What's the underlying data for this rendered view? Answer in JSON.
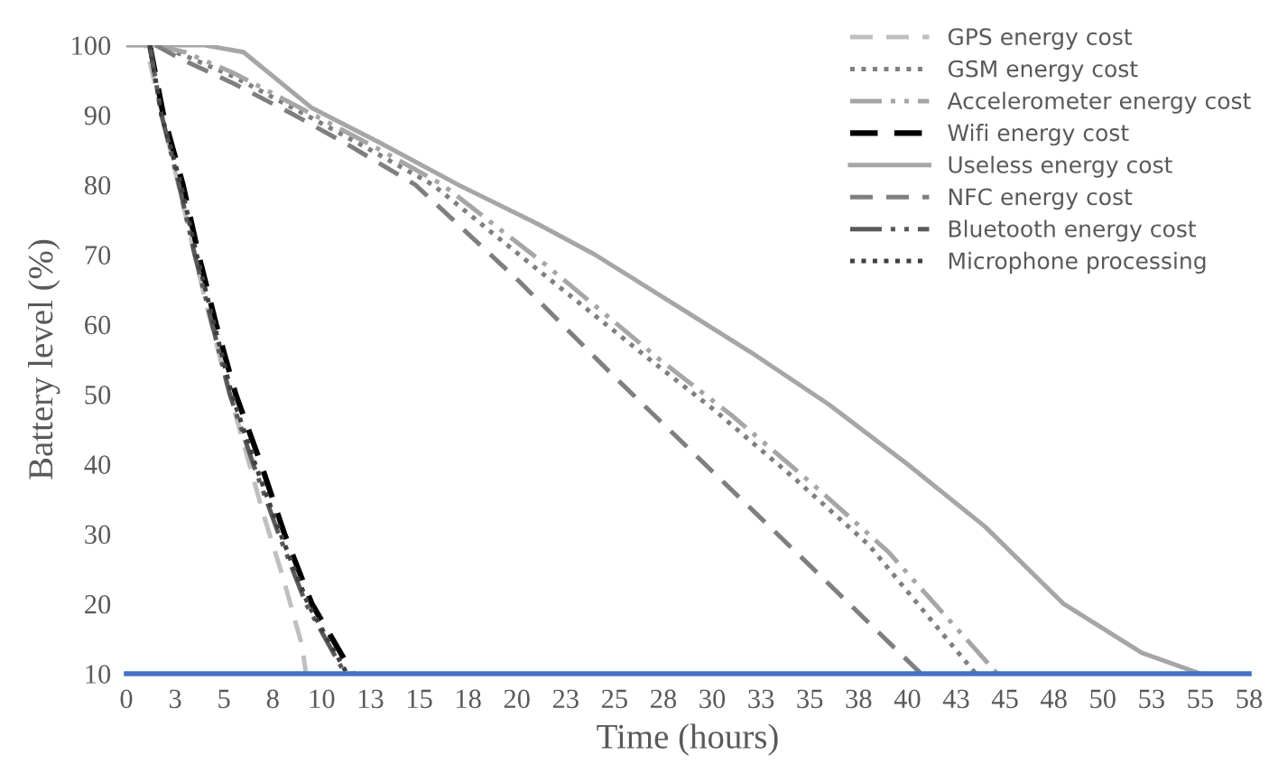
{
  "chart_data": {
    "type": "line",
    "xlabel": "Time (hours)",
    "ylabel": "Battery level (%)",
    "xlim": [
      0,
      57.5
    ],
    "xticks": [
      0,
      {
        "value": 2.5,
        "label": "3"
      },
      5,
      {
        "value": 7.5,
        "label": "8"
      },
      10,
      {
        "value": 12.5,
        "label": "13"
      },
      15,
      {
        "value": 17.5,
        "label": "18"
      },
      20,
      {
        "value": 22.5,
        "label": "23"
      },
      25,
      {
        "value": 27.5,
        "label": "28"
      },
      30,
      {
        "value": 32.5,
        "label": "33"
      },
      35,
      {
        "value": 37.5,
        "label": "38"
      },
      40,
      {
        "value": 42.5,
        "label": "43"
      },
      45,
      {
        "value": 47.5,
        "label": "48"
      },
      50,
      {
        "value": 52.5,
        "label": "53"
      },
      55,
      {
        "value": 57.5,
        "label": "58"
      }
    ],
    "ylim": [
      10,
      100
    ],
    "yticks": [
      10,
      20,
      30,
      40,
      50,
      60,
      70,
      80,
      90,
      100
    ],
    "grid": false,
    "legend": "top right",
    "marker": "none",
    "series": [
      {
        "name": "GPS energy cost",
        "color": "#bfbfbf",
        "line_style": "dashed",
        "x": [
          0,
          1,
          2,
          3,
          4,
          5,
          6,
          7,
          8,
          9,
          9.2
        ],
        "values": [
          100,
          100,
          88,
          76,
          64,
          53,
          43,
          33,
          24,
          14,
          10
        ]
      },
      {
        "name": "GSM energy cost",
        "color": "#7f7f7f",
        "line_style": "dotted",
        "x": [
          1.5,
          3,
          5.5,
          9.2,
          12.5,
          15.7,
          21,
          26.8,
          30,
          34.2,
          38,
          43.5
        ],
        "values": [
          100,
          98.5,
          95.5,
          90,
          85,
          80,
          68,
          55,
          48,
          38,
          28.5,
          10
        ]
      },
      {
        "name": "Accelerometer energy cost",
        "color": "#a6a6a6",
        "line_style": "dashdot",
        "x": [
          1.5,
          3,
          5.5,
          9.6,
          13,
          16.2,
          21.5,
          27.3,
          31,
          35,
          39,
          44.6
        ],
        "values": [
          100,
          99,
          96,
          90,
          85,
          80,
          68.5,
          55,
          47,
          37.5,
          27.5,
          10
        ]
      },
      {
        "name": "Wifi energy cost",
        "color": "#000000",
        "line_style": "dashed",
        "x": [
          1.2,
          1.9,
          2.9,
          3.7,
          4.6,
          5.6,
          6.9,
          8.1,
          9.5,
          11.6
        ],
        "values": [
          100,
          90,
          80,
          70,
          60,
          50,
          40,
          30,
          20,
          10
        ]
      },
      {
        "name": "Useless energy cost",
        "color": "#a6a6a6",
        "line_style": "solid",
        "x": [
          0,
          4,
          6,
          9.5,
          13,
          17,
          21,
          24,
          28,
          32,
          36,
          40,
          44,
          48,
          52,
          55
        ],
        "values": [
          100,
          100,
          99,
          91,
          86,
          80,
          74.5,
          70,
          63,
          56,
          48.5,
          40,
          31,
          20,
          13,
          10
        ]
      },
      {
        "name": "NFC energy cost",
        "color": "#7f7f7f",
        "line_style": "dashed",
        "x": [
          1.5,
          2.8,
          5.5,
          8.6,
          11.5,
          14.8,
          20,
          25,
          30,
          35,
          40.7
        ],
        "values": [
          100,
          98,
          94.5,
          90,
          85.5,
          80,
          66.5,
          52.5,
          39,
          25.5,
          10
        ]
      },
      {
        "name": "Bluetooth energy cost",
        "color": "#595959",
        "line_style": "dashdot",
        "x": [
          1.2,
          1.8,
          2.7,
          3.5,
          4.4,
          5.3,
          6.5,
          7.8,
          9.2,
          11.2
        ],
        "values": [
          100,
          90,
          80,
          70,
          60,
          50,
          40,
          30,
          20,
          10
        ]
      },
      {
        "name": "Microphone processing",
        "color": "#404040",
        "line_style": "dotted",
        "x": [
          1.2,
          1.8,
          2.8,
          3.6,
          4.5,
          5.4,
          6.6,
          7.9,
          9.3,
          11.3
        ],
        "values": [
          100,
          90,
          80,
          70,
          60,
          50,
          40,
          30,
          20,
          10
        ]
      }
    ]
  }
}
